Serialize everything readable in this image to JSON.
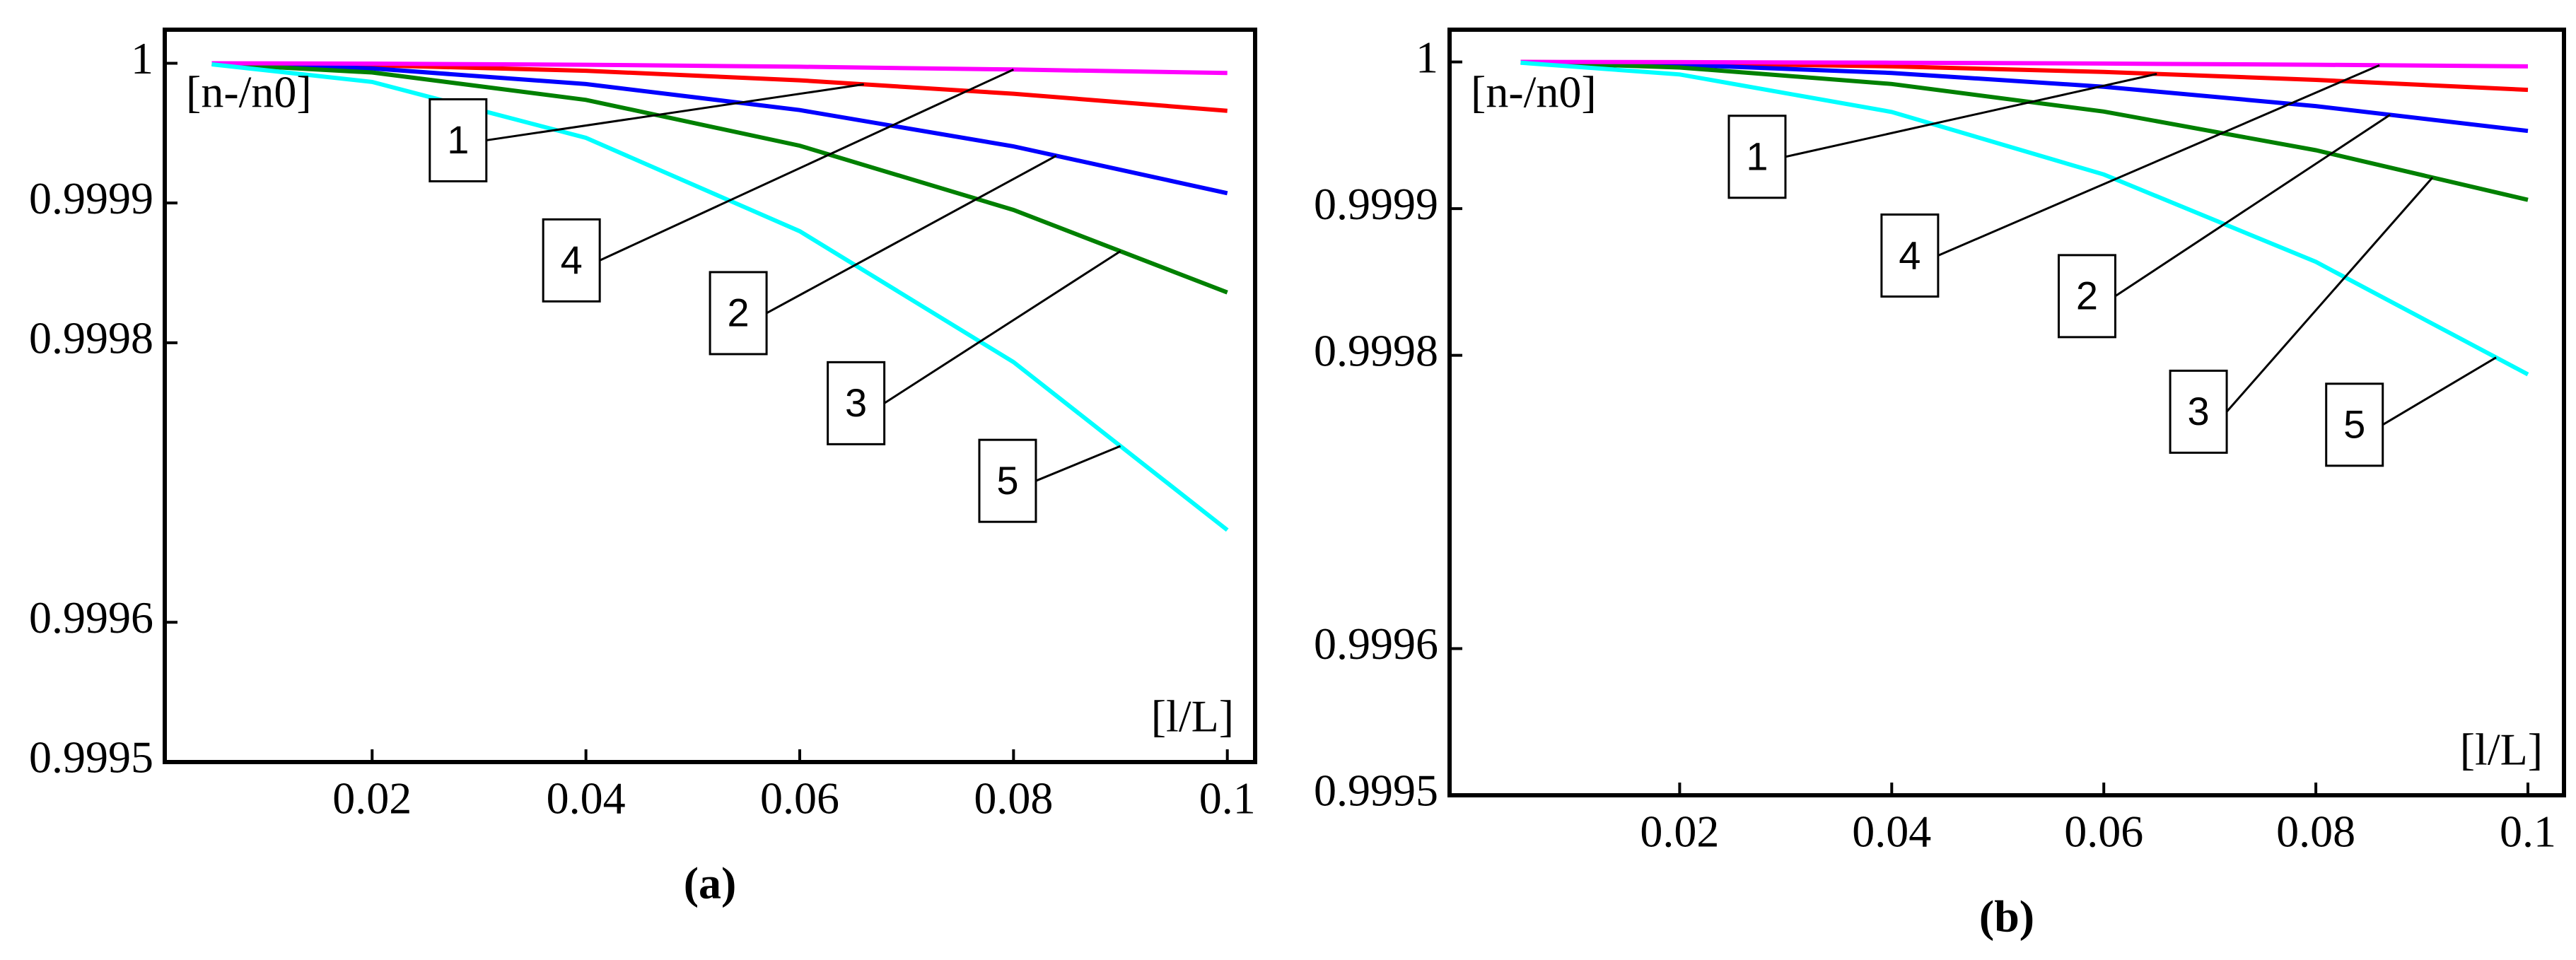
{
  "chart_data": [
    {
      "type": "line",
      "caption": "(a)",
      "y_label": "[n-/n0]",
      "x_label": "[l/L]",
      "x": [
        0.005,
        0.02,
        0.04,
        0.06,
        0.08,
        0.1
      ],
      "xlim": [
        0.0006,
        0.1026
      ],
      "xticks": [
        0.02,
        0.04,
        0.06,
        0.08,
        0.1
      ],
      "ylim": [
        0.9995,
        1.000024
      ],
      "yticks": [
        1,
        0.9999,
        0.9998,
        0.9996,
        0.9995
      ],
      "series": [
        {
          "name": "1",
          "color": "#ff0000",
          "values": [
            0.9999999,
            0.9999986,
            0.9999946,
            0.9999878,
            0.9999782,
            0.999966
          ]
        },
        {
          "name": "2",
          "color": "#0000ff",
          "values": [
            0.9999998,
            0.9999963,
            0.9999851,
            0.9999665,
            0.9999405,
            0.999907
          ]
        },
        {
          "name": "3",
          "color": "#008000",
          "values": [
            0.9999996,
            0.9999934,
            0.9999738,
            0.999941,
            0.999895,
            0.999836
          ]
        },
        {
          "name": "4",
          "color": "#ff00ff",
          "values": [
            1,
            0.9999997,
            0.9999989,
            0.9999975,
            0.9999955,
            0.999993
          ]
        },
        {
          "name": "5",
          "color": "#00ffff",
          "values": [
            0.9999992,
            0.9999866,
            0.9999466,
            0.9998798,
            0.9997862,
            0.999666
          ]
        }
      ]
    },
    {
      "type": "line",
      "caption": "(b)",
      "y_label": "[n-/n0]",
      "x_label": "[l/L]",
      "x": [
        0.005,
        0.02,
        0.04,
        0.06,
        0.08,
        0.1
      ],
      "xlim": [
        -0.0017,
        0.1034
      ],
      "xticks": [
        0.02,
        0.04,
        0.06,
        0.08,
        0.1
      ],
      "ylim": [
        0.9995,
        1.000022
      ],
      "yticks": [
        1,
        0.9999,
        0.9998,
        0.9996,
        0.9995
      ],
      "series": [
        {
          "name": "1",
          "color": "#ff0000",
          "values": [
            1,
            0.9999992,
            0.999997,
            0.9999932,
            0.9999878,
            0.999981
          ]
        },
        {
          "name": "2",
          "color": "#0000ff",
          "values": [
            0.9999999,
            0.9999981,
            0.9999925,
            0.9999831,
            0.9999699,
            0.999953
          ]
        },
        {
          "name": "3",
          "color": "#008000",
          "values": [
            0.9999998,
            0.9999962,
            0.999985,
            0.9999662,
            0.9999398,
            0.999906
          ]
        },
        {
          "name": "4",
          "color": "#ff00ff",
          "values": [
            1,
            0.9999999,
            0.9999995,
            0.9999989,
            0.9999981,
            0.999997
          ]
        },
        {
          "name": "5",
          "color": "#00ffff",
          "values": [
            0.9999995,
            0.9999915,
            0.9999659,
            0.9999233,
            0.9998637,
            0.999787
          ]
        }
      ]
    }
  ]
}
